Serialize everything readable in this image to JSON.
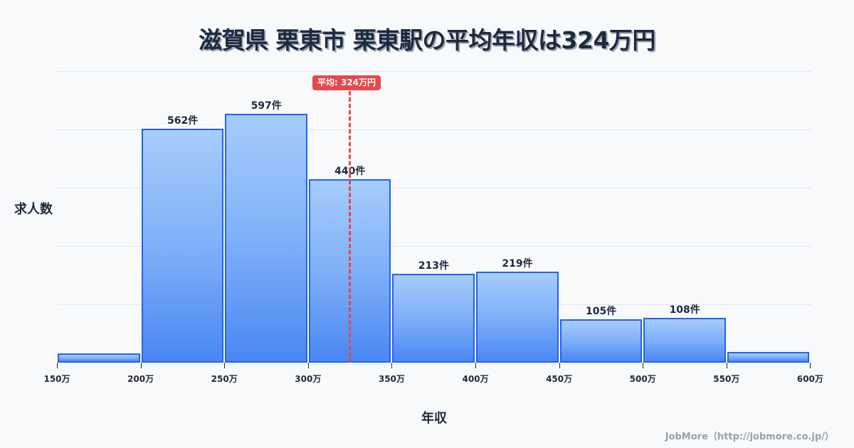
{
  "title": "滋賀県 栗東市 栗東駅の平均年収は324万円",
  "footer": "JobMore（http://jobmore.co.jp/）",
  "mean_badge": "平均: 324万円",
  "chart_data": {
    "type": "bar",
    "title": "滋賀県 栗東市 栗東駅の平均年収は324万円",
    "xlabel": "年収",
    "ylabel": "求人数",
    "categories": [
      "150-200万",
      "200-250万",
      "250-300万",
      "300-350万",
      "350-400万",
      "400-450万",
      "450-500万",
      "500-550万",
      "550-600万"
    ],
    "bin_edges": [
      "150万",
      "200万",
      "250万",
      "300万",
      "350万",
      "400万",
      "450万",
      "500万",
      "550万",
      "600万"
    ],
    "values": [
      22,
      562,
      597,
      440,
      213,
      219,
      105,
      108,
      26
    ],
    "value_labels": [
      "",
      "562件",
      "597件",
      "440件",
      "213件",
      "219件",
      "105件",
      "108件",
      ""
    ],
    "ylim": [
      0,
      700
    ],
    "grid": true,
    "mean": 324,
    "mean_label": "平均: 324万円",
    "colors": {
      "bar_border": "#2563eb",
      "bar_top": "#a6ccfb",
      "bar_bottom": "#4a87f3",
      "mean_line": "#e5484d"
    }
  }
}
